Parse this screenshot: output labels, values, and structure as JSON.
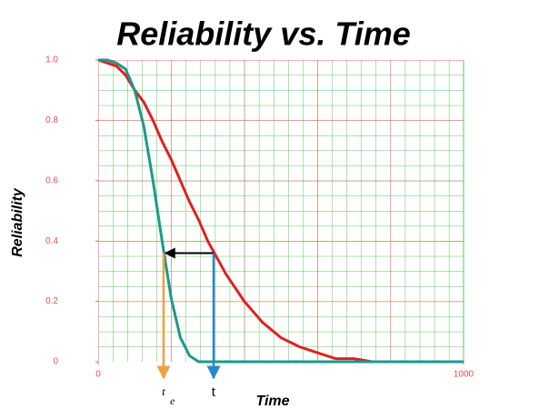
{
  "chart_data": {
    "type": "line",
    "title": "Reliability vs. Time",
    "x_label": "Time",
    "y_label": "Reliability",
    "x": [
      0,
      25,
      50,
      75,
      100,
      125,
      150,
      175,
      200,
      225,
      250,
      275,
      300,
      350,
      400,
      450,
      500,
      550,
      600,
      650,
      700,
      750,
      800,
      900,
      1000
    ],
    "series": [
      {
        "color": "#e02020",
        "values": [
          1,
          0.99,
          0.98,
          0.95,
          0.9,
          0.86,
          0.8,
          0.73,
          0.67,
          0.6,
          0.53,
          0.47,
          0.4,
          0.29,
          0.2,
          0.13,
          0.08,
          0.05,
          0.03,
          0.01,
          0.01,
          0,
          0,
          0,
          0
        ]
      },
      {
        "color": "#1a9a8a",
        "values": [
          1,
          1,
          0.99,
          0.97,
          0.9,
          0.78,
          0.6,
          0.4,
          0.21,
          0.08,
          0.02,
          0,
          0,
          0,
          0,
          0,
          0,
          0,
          0,
          0,
          0,
          0,
          0,
          0,
          0
        ]
      }
    ],
    "xlim": [
      0,
      1000
    ],
    "xticks": [
      0,
      1000
    ],
    "ylim": [
      0,
      1
    ],
    "yticks": [
      0,
      0.2,
      0.4,
      0.6,
      0.8,
      {
        "value": 1,
        "label": "1.0"
      }
    ],
    "grid": true,
    "annotations": [
      {
        "text": "t",
        "subscript": "e",
        "x": 179,
        "y": 0.36,
        "color": "#f0a040"
      },
      {
        "text": "t",
        "x": 316,
        "y": 0.36,
        "color": "#2a86c8"
      }
    ]
  }
}
